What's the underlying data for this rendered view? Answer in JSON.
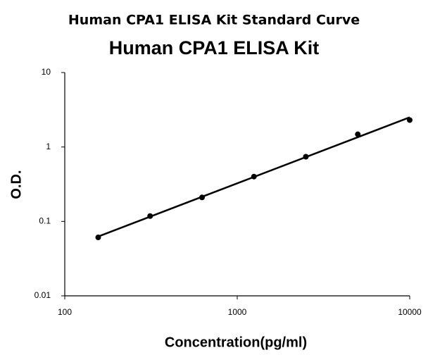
{
  "chart_data": {
    "type": "scatter",
    "title": "Human CPA1 ELISA Kit Standard Curve",
    "subtitle": "Human CPA1 ELISA Kit",
    "x_label": "Concentration(pg/ml)",
    "y_label": "O.D.",
    "x": [
      156.25,
      312.5,
      625,
      1250,
      2500,
      5000,
      10000
    ],
    "values": [
      0.061,
      0.118,
      0.21,
      0.4,
      0.74,
      1.48,
      2.3
    ],
    "color": "#000000",
    "xscale": "log",
    "yscale": "log",
    "trendline": true,
    "xlim": [
      100,
      10000
    ],
    "xticks": [
      100,
      1000,
      10000
    ],
    "ylim": [
      0.01,
      10
    ],
    "yticks": [
      0.01,
      0.1,
      1,
      10
    ]
  }
}
